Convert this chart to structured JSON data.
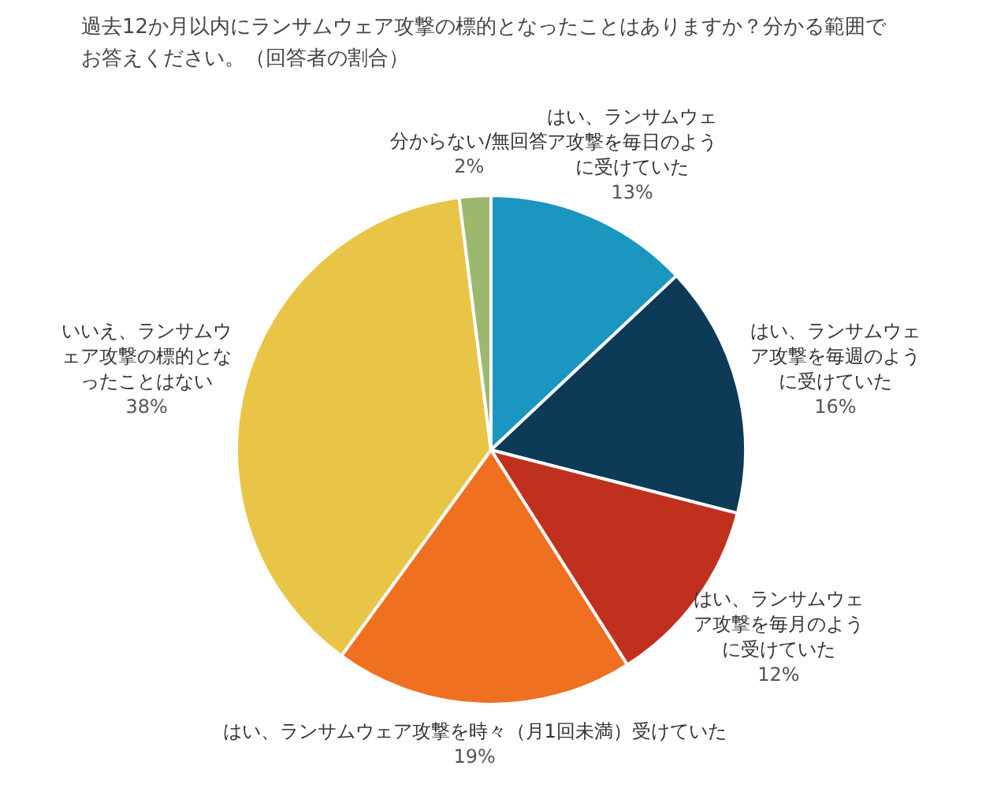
{
  "chart_data": {
    "type": "pie",
    "title": "過去12か月以内にランサムウェア攻撃の標的となったことはありますか？分かる範囲でお答えください。（回答者の割合）",
    "categories": [
      "はい、ランサムウェア攻撃を毎日のように受けていた",
      "はい、ランサムウェア攻撃を毎週のように受けていた",
      "はい、ランサムウェア攻撃を毎月のように受けていた",
      "はい、ランサムウェア攻撃を時々（月1回未満）受けていた",
      "いいえ、ランサムウェア攻撃の標的となったことはない",
      "分からない/無回答"
    ],
    "values": [
      13,
      16,
      12,
      19,
      38,
      2
    ],
    "value_labels": [
      "13%",
      "16%",
      "12%",
      "19%",
      "38%",
      "2%"
    ],
    "colors": [
      "#1a96c0",
      "#0d3a56",
      "#c0301f",
      "#f07022",
      "#e8c547",
      "#9cb86e"
    ],
    "legend": false
  }
}
